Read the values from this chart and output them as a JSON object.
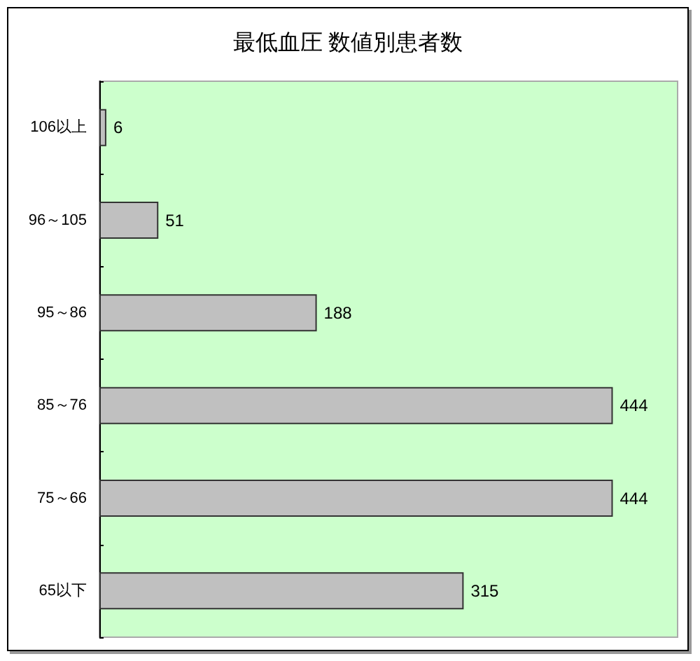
{
  "chart_data": {
    "type": "bar",
    "orientation": "horizontal",
    "title": "最低血圧 数値別患者数",
    "categories": [
      "106以上",
      "96～105",
      "95～86",
      "85～76",
      "75～66",
      "65以下"
    ],
    "values": [
      6,
      51,
      188,
      444,
      444,
      315
    ],
    "color": "#c0c0c0",
    "xlim": [
      0,
      500
    ],
    "data_labels": true,
    "tick_labels": "y"
  }
}
